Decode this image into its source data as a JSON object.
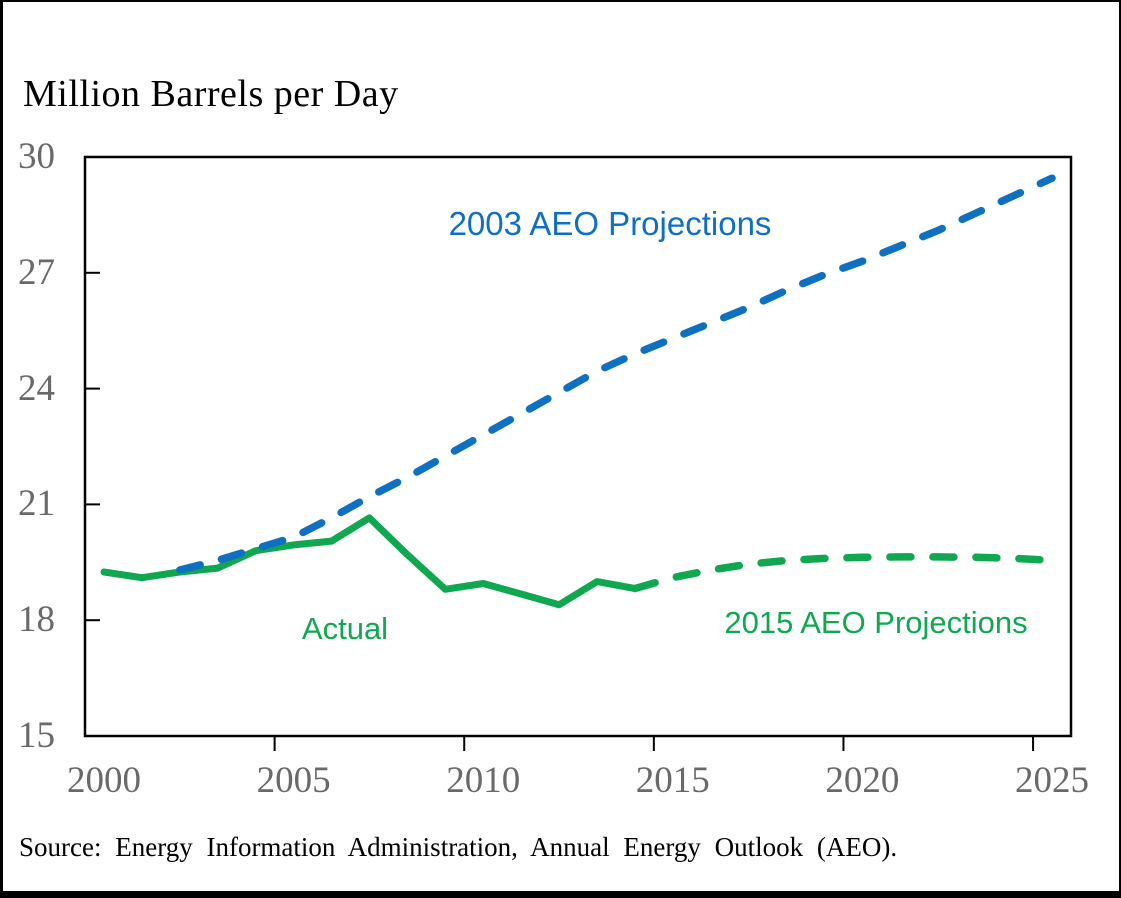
{
  "title": "Million Barrels per Day",
  "annotations": {
    "aeo2003": "2003 AEO Projections",
    "actual": "Actual",
    "aeo2015": "2015 AEO Projections"
  },
  "source_note": "Source: Energy Information Administration, Annual Energy Outlook (AEO).",
  "colors": {
    "projection_blue": "#0F70C2",
    "actual_green": "#0FA850",
    "axis_label_gray": "#696969",
    "axis_line_black": "#000000"
  },
  "chart_data": {
    "type": "line",
    "title": "Million Barrels per Day",
    "xlabel": "",
    "ylabel": "Million Barrels per Day",
    "xlim": [
      2000,
      2026
    ],
    "ylim": [
      15,
      30
    ],
    "x_ticks": [
      2000,
      2005,
      2010,
      2015,
      2020,
      2025
    ],
    "y_ticks": [
      15,
      18,
      21,
      24,
      27,
      30
    ],
    "grid": false,
    "legend": "inline-annotations",
    "series": [
      {
        "name": "Actual",
        "color": "#0FA850",
        "style": "solid",
        "points": [
          [
            2000,
            19.25
          ],
          [
            2001,
            19.1
          ],
          [
            2002,
            19.25
          ],
          [
            2003,
            19.35
          ],
          [
            2004,
            19.8
          ],
          [
            2005,
            19.95
          ],
          [
            2006,
            20.05
          ],
          [
            2007,
            20.65
          ],
          [
            2008,
            19.7
          ],
          [
            2009,
            18.8
          ],
          [
            2010,
            18.95
          ],
          [
            2011,
            18.68
          ],
          [
            2012,
            18.4
          ],
          [
            2013,
            19.0
          ],
          [
            2014,
            18.82
          ]
        ]
      },
      {
        "name": "2003 AEO Projections",
        "color": "#0F70C2",
        "style": "dashed",
        "points": [
          [
            2002,
            19.3
          ],
          [
            2003,
            19.55
          ],
          [
            2004,
            19.85
          ],
          [
            2005,
            20.15
          ],
          [
            2006,
            20.65
          ],
          [
            2007,
            21.2
          ],
          [
            2008,
            21.7
          ],
          [
            2009,
            22.25
          ],
          [
            2010,
            22.8
          ],
          [
            2011,
            23.35
          ],
          [
            2012,
            23.9
          ],
          [
            2013,
            24.45
          ],
          [
            2014,
            24.9
          ],
          [
            2015,
            25.3
          ],
          [
            2016,
            25.7
          ],
          [
            2017,
            26.1
          ],
          [
            2018,
            26.55
          ],
          [
            2019,
            26.95
          ],
          [
            2020,
            27.3
          ],
          [
            2021,
            27.7
          ],
          [
            2022,
            28.1
          ],
          [
            2023,
            28.55
          ],
          [
            2024,
            29.0
          ],
          [
            2025,
            29.45
          ]
        ]
      },
      {
        "name": "2015 AEO Projections",
        "color": "#0FA850",
        "style": "dashed",
        "points": [
          [
            2014,
            18.82
          ],
          [
            2015,
            19.1
          ],
          [
            2016,
            19.3
          ],
          [
            2017,
            19.45
          ],
          [
            2018,
            19.55
          ],
          [
            2019,
            19.6
          ],
          [
            2020,
            19.63
          ],
          [
            2021,
            19.64
          ],
          [
            2022,
            19.64
          ],
          [
            2023,
            19.63
          ],
          [
            2024,
            19.6
          ],
          [
            2025,
            19.55
          ]
        ]
      }
    ]
  }
}
